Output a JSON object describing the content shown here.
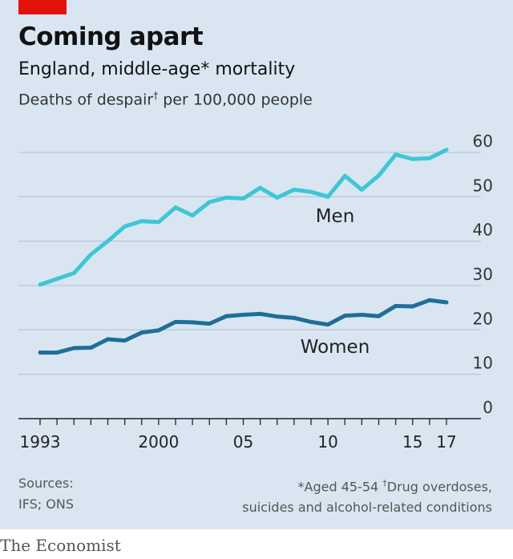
{
  "header": {
    "title": "Coming apart",
    "subtitle": "England, middle-age* mortality",
    "unit_main": "Deaths of despair",
    "unit_mark": "†",
    "unit_tail": " per 100,000 people"
  },
  "footer": {
    "sources_line1": "Sources:",
    "sources_line2": "IFS; ONS",
    "note_line1a": "*Aged 45-54  ",
    "note_mark": "†",
    "note_line1b": "Drug overdoses,",
    "note_line2": "suicides and alcohol-related conditions",
    "brand": "The Economist"
  },
  "colors": {
    "men": "#3ec6d6",
    "women": "#1f6e9a",
    "background": "#d9e6f2",
    "grid": "#b9c9d8",
    "accent": "#e3120b"
  },
  "chart_data": {
    "type": "line",
    "x": [
      1993,
      1994,
      1995,
      1996,
      1997,
      1998,
      1999,
      2000,
      2001,
      2002,
      2003,
      2004,
      2005,
      2006,
      2007,
      2008,
      2009,
      2010,
      2011,
      2012,
      2013,
      2014,
      2015,
      2016,
      2017
    ],
    "series": [
      {
        "name": "Men",
        "values": [
          30.2,
          31.5,
          32.8,
          37.0,
          40.0,
          43.3,
          44.5,
          44.3,
          47.6,
          45.8,
          48.8,
          49.8,
          49.6,
          52.0,
          49.8,
          51.6,
          51.1,
          50.0,
          54.7,
          51.6,
          54.8,
          59.5,
          58.5,
          58.7,
          60.6
        ]
      },
      {
        "name": "Women",
        "values": [
          14.9,
          14.9,
          15.9,
          16.0,
          17.9,
          17.6,
          19.4,
          19.9,
          21.8,
          21.7,
          21.4,
          23.1,
          23.4,
          23.6,
          23.0,
          22.7,
          21.8,
          21.2,
          23.2,
          23.4,
          23.1,
          25.4,
          25.3,
          26.7,
          26.2
        ]
      }
    ],
    "xticks": [
      {
        "label": "1993",
        "x": 1993
      },
      {
        "label": "2000",
        "x": 2000
      },
      {
        "label": "05",
        "x": 2005
      },
      {
        "label": "10",
        "x": 2010
      },
      {
        "label": "15",
        "x": 2015
      },
      {
        "label": "17",
        "x": 2017
      }
    ],
    "yticks": [
      0,
      10,
      20,
      30,
      40,
      50,
      60
    ],
    "ylim": [
      0,
      60
    ],
    "xlim": [
      1993,
      2017
    ],
    "grid": true,
    "y_axis_side": "right"
  }
}
